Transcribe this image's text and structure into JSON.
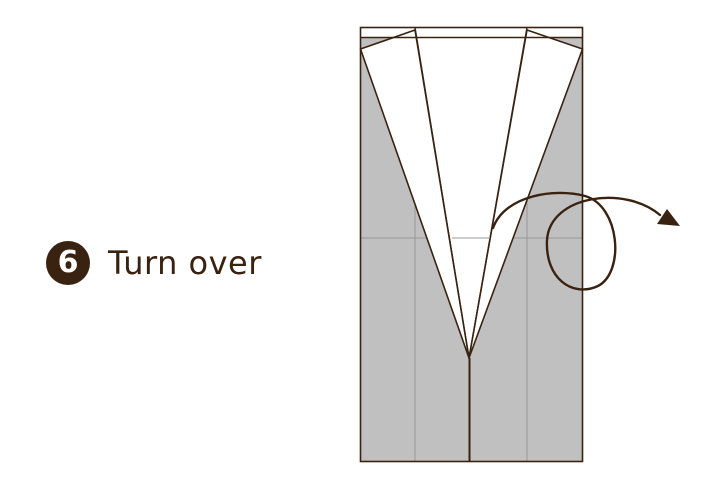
{
  "step": {
    "number": "6",
    "instruction": "Turn over"
  },
  "colors": {
    "ink": "#3a2210",
    "paper_back": "#c0c0c0",
    "paper_front": "#ffffff",
    "crease": "#999999",
    "badge": "#3a2210"
  },
  "icons": {
    "turn_over": "turn-over-arrow-icon"
  }
}
